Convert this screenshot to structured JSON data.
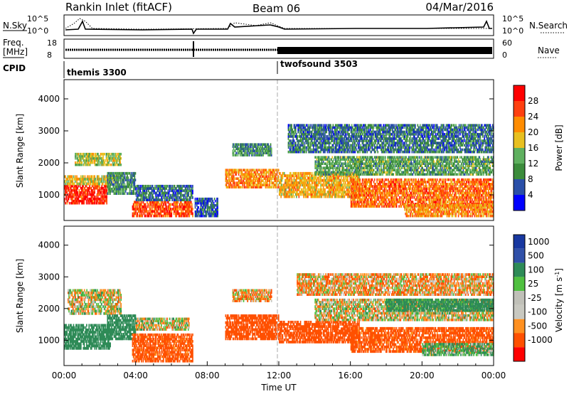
{
  "header": {
    "station": "Rankin Inlet (fitACF)",
    "beam": "Beam 06",
    "date": "04/Mar/2016"
  },
  "top_panels": {
    "nsky_label": "N.Sky",
    "nsearch_label": "N.Search",
    "nsky_ticks": [
      "10^5",
      "10^0"
    ],
    "nsearch_ticks": [
      "10^5",
      "10^0"
    ],
    "freq_label_1": "Freq.",
    "freq_label_2": "[MHz]",
    "freq_ticks": [
      "18",
      "8"
    ],
    "nave_label": "Nave",
    "nave_ticks": [
      "60",
      "0"
    ],
    "cpid_label": "CPID",
    "cpid_segments": [
      "themis 3300",
      "twofsound 3503"
    ]
  },
  "colors": {
    "power": [
      "#0000ff",
      "#2a4fa8",
      "#3c8c3c",
      "#5fb05f",
      "#e8c020",
      "#ff8c00",
      "#ff4010",
      "#ff0000"
    ],
    "velocity": [
      "#ff0000",
      "#ff5000",
      "#ff9020",
      "#c8c8c0",
      "#c0c0b8",
      "#50c040",
      "#2e8b57",
      "#3050a8",
      "#1838a0"
    ]
  },
  "chart_data": [
    {
      "type": "heatmap",
      "title": "",
      "xlabel": "",
      "ylabel": "Slant Range [km]",
      "xlim": [
        "00:00",
        "24:00"
      ],
      "ylim": [
        200,
        4600
      ],
      "y_ticks": [
        "1000",
        "2000",
        "3000",
        "4000"
      ],
      "colorbar": {
        "label": "Power [dB]",
        "ticks": [
          "28",
          "24",
          "20",
          "16",
          "12",
          "8",
          "4"
        ],
        "range": [
          0,
          32
        ]
      },
      "regions": [
        {
          "t0": 0.0,
          "t1": 2.4,
          "r0": 700,
          "r1": 1300,
          "value": 28
        },
        {
          "t0": 0.0,
          "t1": 3.0,
          "r0": 1300,
          "r1": 1600,
          "value": 18
        },
        {
          "t0": 0.6,
          "t1": 3.2,
          "r0": 1900,
          "r1": 2300,
          "value": 16
        },
        {
          "t0": 2.4,
          "t1": 4.0,
          "r0": 1000,
          "r1": 1700,
          "value": 10
        },
        {
          "t0": 3.8,
          "t1": 7.2,
          "r0": 300,
          "r1": 800,
          "value": 26
        },
        {
          "t0": 4.0,
          "t1": 7.2,
          "r0": 800,
          "r1": 1300,
          "value": 8
        },
        {
          "t0": 7.3,
          "t1": 8.6,
          "r0": 300,
          "r1": 900,
          "value": 6
        },
        {
          "t0": 9.0,
          "t1": 12.0,
          "r0": 1200,
          "r1": 1800,
          "value": 22
        },
        {
          "t0": 9.4,
          "t1": 11.6,
          "r0": 2200,
          "r1": 2600,
          "value": 10
        },
        {
          "t0": 12.0,
          "t1": 16.5,
          "r0": 900,
          "r1": 1700,
          "value": 20
        },
        {
          "t0": 14.0,
          "t1": 24.0,
          "r0": 1600,
          "r1": 2200,
          "value": 12
        },
        {
          "t0": 16.0,
          "t1": 24.0,
          "r0": 600,
          "r1": 1500,
          "value": 24
        },
        {
          "t0": 19.0,
          "t1": 24.0,
          "r0": 300,
          "r1": 700,
          "value": 22
        },
        {
          "t0": 12.5,
          "t1": 24.0,
          "r0": 2300,
          "r1": 3200,
          "value": 8
        }
      ]
    },
    {
      "type": "heatmap",
      "title": "",
      "xlabel": "Time UT",
      "ylabel": "Slant Range [km]",
      "xlim": [
        "00:00",
        "24:00"
      ],
      "ylim": [
        200,
        4600
      ],
      "x_ticks": [
        "00:00",
        "04:00",
        "08:00",
        "12:00",
        "16:00",
        "20:00",
        "00:00"
      ],
      "y_ticks": [
        "1000",
        "2000",
        "3000",
        "4000"
      ],
      "colorbar": {
        "label": "Velocity [m s",
        "label_exponent": "-1",
        "label_close": "]",
        "ticks": [
          "1000",
          "500",
          "100",
          "25",
          "-25",
          "-100",
          "-500",
          "-1000"
        ],
        "range": [
          -1000,
          1000
        ]
      },
      "regions": [
        {
          "t0": 0.0,
          "t1": 2.6,
          "r0": 700,
          "r1": 1500,
          "value": 300
        },
        {
          "t0": 0.2,
          "t1": 3.2,
          "r0": 1800,
          "r1": 2600,
          "value": 0
        },
        {
          "t0": 2.4,
          "t1": 4.0,
          "r0": 1000,
          "r1": 1800,
          "value": 300
        },
        {
          "t0": 3.8,
          "t1": 7.2,
          "r0": 300,
          "r1": 1200,
          "value": -200
        },
        {
          "t0": 4.0,
          "t1": 7.0,
          "r0": 1300,
          "r1": 1700,
          "value": 0
        },
        {
          "t0": 9.0,
          "t1": 12.0,
          "r0": 1000,
          "r1": 1800,
          "value": -300
        },
        {
          "t0": 9.4,
          "t1": 11.6,
          "r0": 2200,
          "r1": 2600,
          "value": -60
        },
        {
          "t0": 12.0,
          "t1": 16.5,
          "r0": 900,
          "r1": 1600,
          "value": -300
        },
        {
          "t0": 14.0,
          "t1": 24.0,
          "r0": 1600,
          "r1": 2300,
          "value": 0
        },
        {
          "t0": 18.0,
          "t1": 24.0,
          "r0": 1900,
          "r1": 2300,
          "value": 200
        },
        {
          "t0": 16.0,
          "t1": 24.0,
          "r0": 600,
          "r1": 1400,
          "value": -200
        },
        {
          "t0": 20.0,
          "t1": 24.0,
          "r0": 500,
          "r1": 900,
          "value": 100
        },
        {
          "t0": 13.0,
          "t1": 24.0,
          "r0": 2400,
          "r1": 3100,
          "value": -60
        }
      ]
    }
  ]
}
